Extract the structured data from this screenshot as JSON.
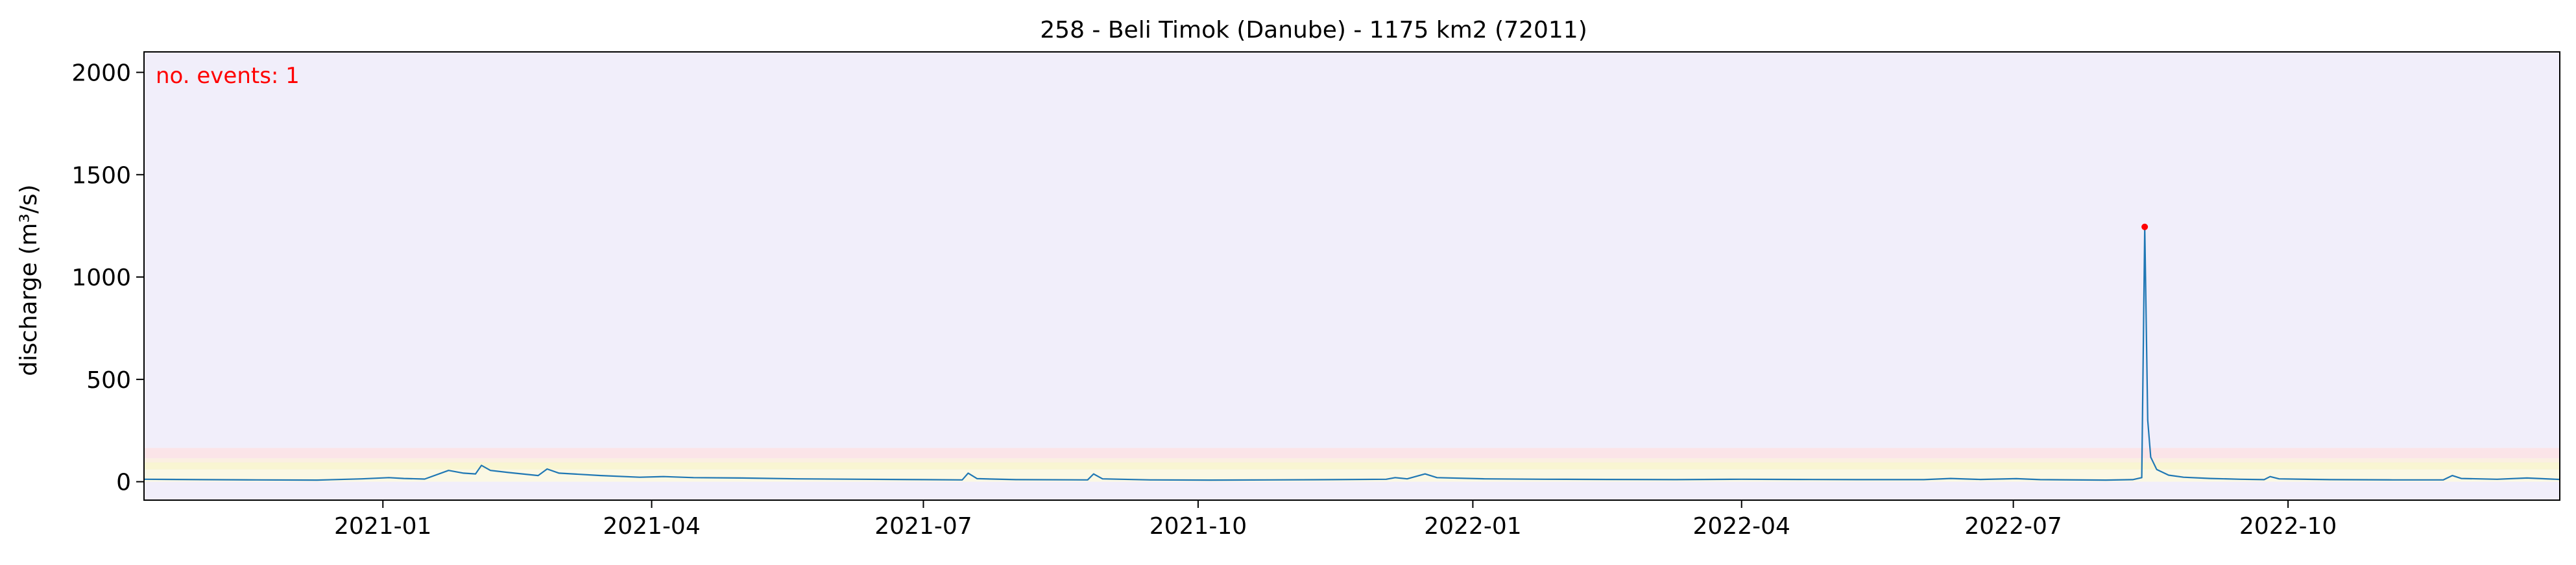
{
  "chart_data": {
    "type": "line",
    "title": "258 - Beli Timok (Danube) - 1175 km2 (72011)",
    "xlabel": "",
    "ylabel": "discharge (m³/s)",
    "xlim": [
      "2020-10-13",
      "2022-12-31"
    ],
    "ylim": [
      -90,
      2100
    ],
    "x_ticks": [
      "2021-01",
      "2021-04",
      "2021-07",
      "2021-10",
      "2022-01",
      "2022-04",
      "2022-07",
      "2022-10"
    ],
    "y_ticks": [
      0,
      500,
      1000,
      1500,
      2000
    ],
    "grid": false,
    "background_color": "#f1eefa",
    "threshold_bands": [
      {
        "from": 0,
        "to": 60,
        "color": "#fbf8e4"
      },
      {
        "from": 60,
        "to": 95,
        "color": "#f9f5d2"
      },
      {
        "from": 95,
        "to": 115,
        "color": "#fbefe2"
      },
      {
        "from": 115,
        "to": 165,
        "color": "#fbe4e8"
      }
    ],
    "annotation": {
      "text": "no. events: 1",
      "color": "#ff0000"
    },
    "series": [
      {
        "color": "#1f77b4",
        "points": [
          [
            "2020-10-13",
            12
          ],
          [
            "2020-11-01",
            10
          ],
          [
            "2020-11-20",
            9
          ],
          [
            "2020-12-10",
            8
          ],
          [
            "2020-12-25",
            14
          ],
          [
            "2021-01-03",
            20
          ],
          [
            "2021-01-08",
            16
          ],
          [
            "2021-01-15",
            13
          ],
          [
            "2021-01-23",
            55
          ],
          [
            "2021-01-28",
            42
          ],
          [
            "2021-02-01",
            38
          ],
          [
            "2021-02-03",
            80
          ],
          [
            "2021-02-06",
            55
          ],
          [
            "2021-02-12",
            45
          ],
          [
            "2021-02-22",
            30
          ],
          [
            "2021-02-25",
            62
          ],
          [
            "2021-03-01",
            42
          ],
          [
            "2021-03-15",
            30
          ],
          [
            "2021-03-28",
            22
          ],
          [
            "2021-04-05",
            25
          ],
          [
            "2021-04-15",
            20
          ],
          [
            "2021-05-01",
            18
          ],
          [
            "2021-05-20",
            14
          ],
          [
            "2021-06-10",
            12
          ],
          [
            "2021-07-01",
            10
          ],
          [
            "2021-07-14",
            9
          ],
          [
            "2021-07-16",
            42
          ],
          [
            "2021-07-19",
            15
          ],
          [
            "2021-08-01",
            10
          ],
          [
            "2021-08-25",
            9
          ],
          [
            "2021-08-27",
            38
          ],
          [
            "2021-08-30",
            14
          ],
          [
            "2021-09-15",
            9
          ],
          [
            "2021-10-05",
            8
          ],
          [
            "2021-10-25",
            9
          ],
          [
            "2021-11-15",
            10
          ],
          [
            "2021-12-03",
            12
          ],
          [
            "2021-12-06",
            20
          ],
          [
            "2021-12-10",
            14
          ],
          [
            "2021-12-16",
            38
          ],
          [
            "2021-12-20",
            20
          ],
          [
            "2022-01-05",
            14
          ],
          [
            "2022-01-25",
            12
          ],
          [
            "2022-02-15",
            11
          ],
          [
            "2022-03-10",
            10
          ],
          [
            "2022-04-01",
            12
          ],
          [
            "2022-04-20",
            11
          ],
          [
            "2022-05-10",
            10
          ],
          [
            "2022-06-01",
            10
          ],
          [
            "2022-06-10",
            16
          ],
          [
            "2022-06-20",
            11
          ],
          [
            "2022-07-02",
            15
          ],
          [
            "2022-07-10",
            10
          ],
          [
            "2022-08-01",
            8
          ],
          [
            "2022-08-10",
            10
          ],
          [
            "2022-08-13",
            20
          ],
          [
            "2022-08-14",
            1245
          ],
          [
            "2022-08-15",
            300
          ],
          [
            "2022-08-16",
            120
          ],
          [
            "2022-08-18",
            60
          ],
          [
            "2022-08-22",
            32
          ],
          [
            "2022-08-27",
            22
          ],
          [
            "2022-09-05",
            16
          ],
          [
            "2022-09-15",
            12
          ],
          [
            "2022-09-23",
            10
          ],
          [
            "2022-09-25",
            25
          ],
          [
            "2022-09-28",
            14
          ],
          [
            "2022-10-15",
            10
          ],
          [
            "2022-11-05",
            9
          ],
          [
            "2022-11-22",
            9
          ],
          [
            "2022-11-25",
            30
          ],
          [
            "2022-11-28",
            16
          ],
          [
            "2022-12-10",
            12
          ],
          [
            "2022-12-20",
            18
          ],
          [
            "2022-12-31",
            11
          ]
        ]
      }
    ],
    "events": [
      {
        "x": "2022-08-14",
        "y": 1245,
        "color": "#ff0000"
      }
    ]
  }
}
